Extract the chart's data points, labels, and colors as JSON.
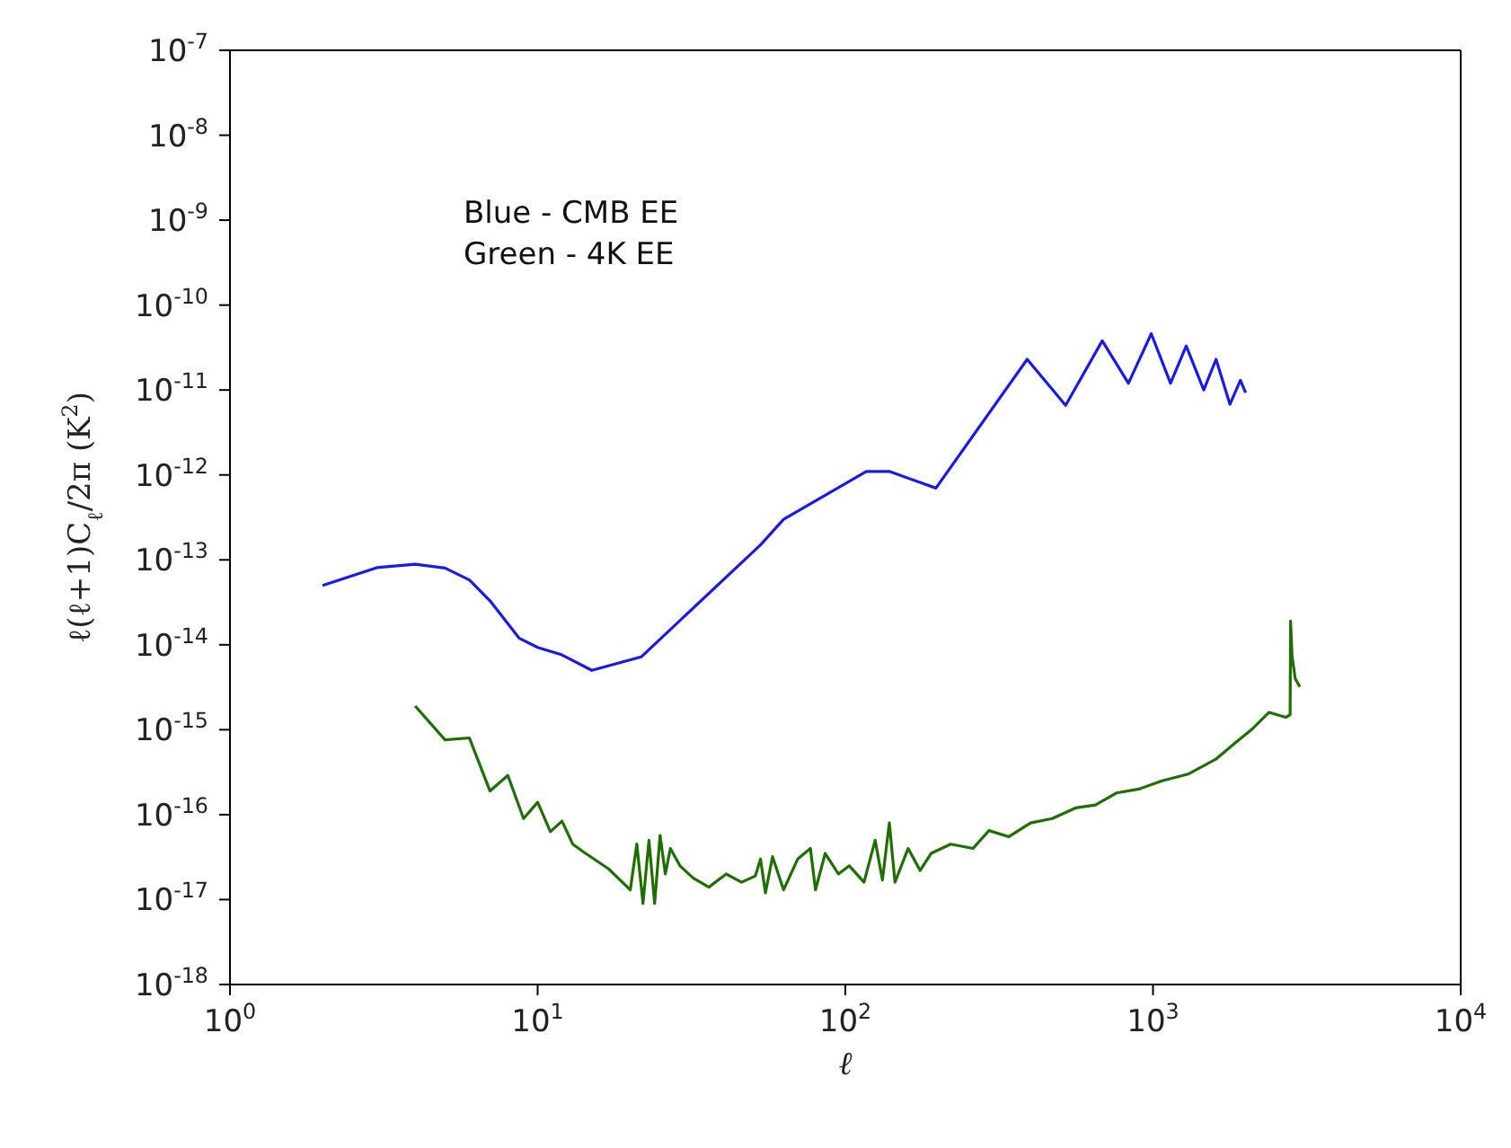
{
  "chart_data": {
    "type": "line",
    "xlabel": "ℓ",
    "ylabel": "ℓ(ℓ+1)C$_{ℓ}$/2π (K$^{2}$)",
    "annotations": [
      "Blue - CMB EE",
      "Green - 4K EE"
    ],
    "log": "xy",
    "grid": false,
    "legend": false,
    "marker": "none",
    "line_style": "solid",
    "xlim": [
      1,
      10000
    ],
    "xticks": [
      {
        "value": 1,
        "label": "10$^{0}$"
      },
      {
        "value": 10,
        "label": "10$^{1}$"
      },
      {
        "value": 100,
        "label": "10$^{2}$"
      },
      {
        "value": 1000,
        "label": "10$^{3}$"
      },
      {
        "value": 10000,
        "label": "10$^{4}$"
      }
    ],
    "ylim": [
      1e-18,
      1e-07
    ],
    "yticks": [
      {
        "value": 1e-18,
        "label": "10$^{-18}$"
      },
      {
        "value": 1e-17,
        "label": "10$^{-17}$"
      },
      {
        "value": 1e-16,
        "label": "10$^{-16}$"
      },
      {
        "value": 1e-15,
        "label": "10$^{-15}$"
      },
      {
        "value": 1e-14,
        "label": "10$^{-14}$"
      },
      {
        "value": 1e-13,
        "label": "10$^{-13}$"
      },
      {
        "value": 1e-12,
        "label": "10$^{-12}$"
      },
      {
        "value": 1e-11,
        "label": "10$^{-11}$"
      },
      {
        "value": 1e-10,
        "label": "10$^{-10}$"
      },
      {
        "value": 1e-09,
        "label": "10$^{-9}$"
      },
      {
        "value": 1e-08,
        "label": "10$^{-8}$"
      },
      {
        "value": 1e-07,
        "label": "10$^{-7}$"
      }
    ],
    "series": [
      {
        "color": "#1a1ae6",
        "x": [
          2,
          3,
          4,
          5,
          6,
          7,
          8.7,
          10,
          12,
          15,
          21.7,
          53,
          63,
          117,
          139,
          197,
          390,
          520,
          684,
          832,
          987,
          1140,
          1282,
          1462,
          1603,
          1778,
          1923,
          2000
        ],
        "values": [
          5e-14,
          8.1e-14,
          8.9e-14,
          8e-14,
          5.8e-14,
          3.3e-14,
          1.2e-14,
          9.3e-15,
          7.6e-15,
          5e-15,
          7.2e-15,
          1.5e-13,
          3e-13,
          1.1e-12,
          1.1e-12,
          7e-13,
          2.3e-11,
          6.6e-12,
          3.8e-11,
          1.2e-11,
          4.6e-11,
          1.2e-11,
          3.3e-11,
          1e-11,
          2.3e-11,
          6.8e-12,
          1.3e-11,
          9.3e-12
        ]
      },
      {
        "color": "#1f6e00",
        "x": [
          4,
          5,
          6,
          7,
          8,
          9,
          10,
          11,
          12,
          13,
          14,
          17,
          20,
          21,
          22,
          23,
          24,
          25,
          26,
          27,
          29,
          32,
          36,
          41,
          46,
          51,
          53,
          55,
          58,
          63,
          70,
          77,
          80,
          86,
          95,
          103,
          115,
          125,
          132,
          139,
          145,
          160,
          175,
          190,
          220,
          260,
          293,
          340,
          400,
          470,
          560,
          650,
          760,
          900,
          1070,
          1300,
          1600,
          1850,
          2090,
          2380,
          2700,
          2790,
          2800,
          2830,
          2900,
          3000
        ],
        "values": [
          1.9e-15,
          7.6e-16,
          8e-16,
          1.9e-16,
          2.9e-16,
          9e-17,
          1.4e-16,
          6.3e-17,
          8.4e-17,
          4.5e-17,
          3.7e-17,
          2.3e-17,
          1.3e-17,
          4.5e-17,
          9e-18,
          5e-17,
          9e-18,
          5.7e-17,
          2e-17,
          4e-17,
          2.5e-17,
          1.8e-17,
          1.4e-17,
          2e-17,
          1.6e-17,
          1.9e-17,
          3e-17,
          1.2e-17,
          3.2e-17,
          1.3e-17,
          3e-17,
          4e-17,
          1.3e-17,
          3.5e-17,
          2e-17,
          2.5e-17,
          1.6e-17,
          5e-17,
          1.7e-17,
          8e-17,
          1.6e-17,
          4e-17,
          2.2e-17,
          3.5e-17,
          4.5e-17,
          4e-17,
          6.5e-17,
          5.5e-17,
          8e-17,
          9e-17,
          1.2e-16,
          1.3e-16,
          1.8e-16,
          2e-16,
          2.5e-16,
          3e-16,
          4.5e-16,
          7e-16,
          1e-15,
          1.6e-15,
          1.4e-15,
          1.5e-15,
          1.9e-14,
          7.4e-15,
          4e-15,
          3.2e-15
        ]
      }
    ]
  }
}
